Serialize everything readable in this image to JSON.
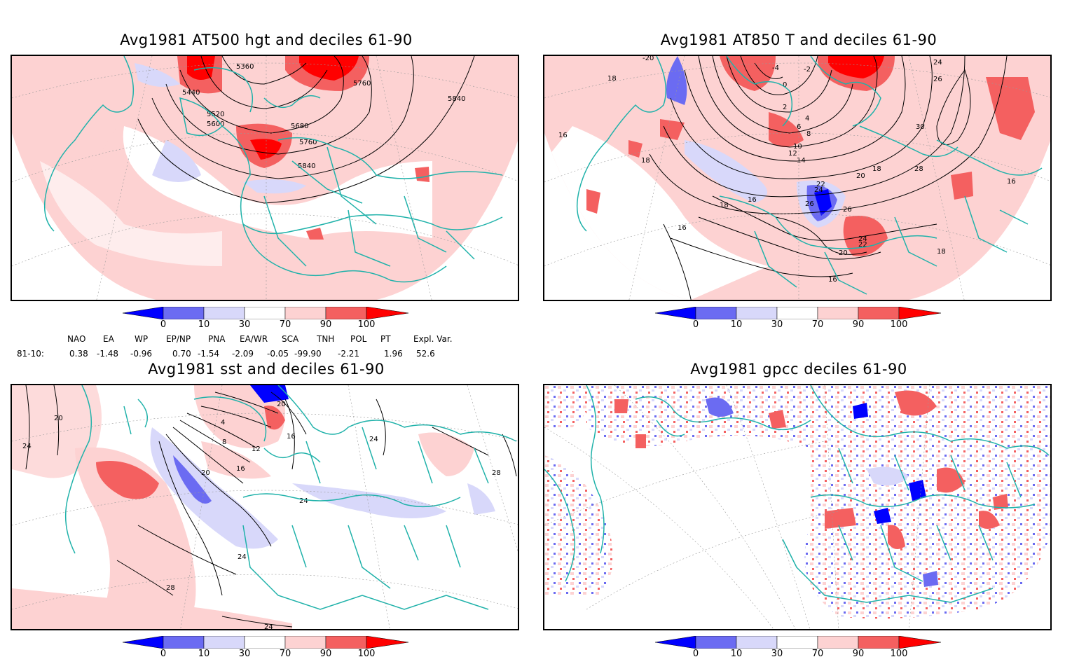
{
  "panels": [
    {
      "id": "p1",
      "title": "Avg1981 AT500 hgt and deciles 61-90",
      "contour_labels": [
        "5360",
        "5440",
        "5520",
        "5600",
        "5680",
        "5760",
        "5760",
        "5840",
        "5840"
      ]
    },
    {
      "id": "p2",
      "title": "Avg1981 AT850 T and deciles 61-90",
      "contour_labels": [
        "-20",
        "-4",
        "-2",
        "0",
        "2",
        "4",
        "6",
        "8",
        "10",
        "12",
        "14",
        "16",
        "16",
        "16",
        "18",
        "18",
        "18",
        "18",
        "20",
        "20",
        "22",
        "22",
        "24",
        "24",
        "24",
        "26",
        "26",
        "26",
        "28",
        "30",
        "16",
        "18",
        "16"
      ]
    },
    {
      "id": "p3",
      "title": "Avg1981 sst and deciles 61-90",
      "contour_labels": [
        "20",
        "24",
        "4",
        "8",
        "12",
        "16",
        "20",
        "16",
        "20",
        "24",
        "24",
        "28",
        "24",
        "28",
        "24"
      ]
    },
    {
      "id": "p4",
      "title": "Avg1981 gpcc deciles 61-90",
      "contour_labels": []
    }
  ],
  "colorbar": {
    "labels": [
      "0",
      "10",
      "30",
      "70",
      "90",
      "100"
    ],
    "colors": [
      "#0000ff",
      "#6b6bf2",
      "#d8d8fa",
      "#ffffff",
      "#fdd2d2",
      "#f46060",
      "#ff0000"
    ]
  },
  "indices": {
    "headers": [
      "NAO",
      "EA",
      "WP",
      "EP/NP",
      "PNA",
      "EA/WR",
      "SCA",
      "TNH",
      "POL",
      "PT",
      "Expl. Var."
    ],
    "row_label": "81-10:",
    "values": [
      "0.38",
      "-1.48",
      "-0.96",
      "0.70",
      "-1.54",
      "-2.09",
      "-0.05",
      "-99.90",
      "-2.21",
      "1.96",
      "52.6"
    ]
  }
}
